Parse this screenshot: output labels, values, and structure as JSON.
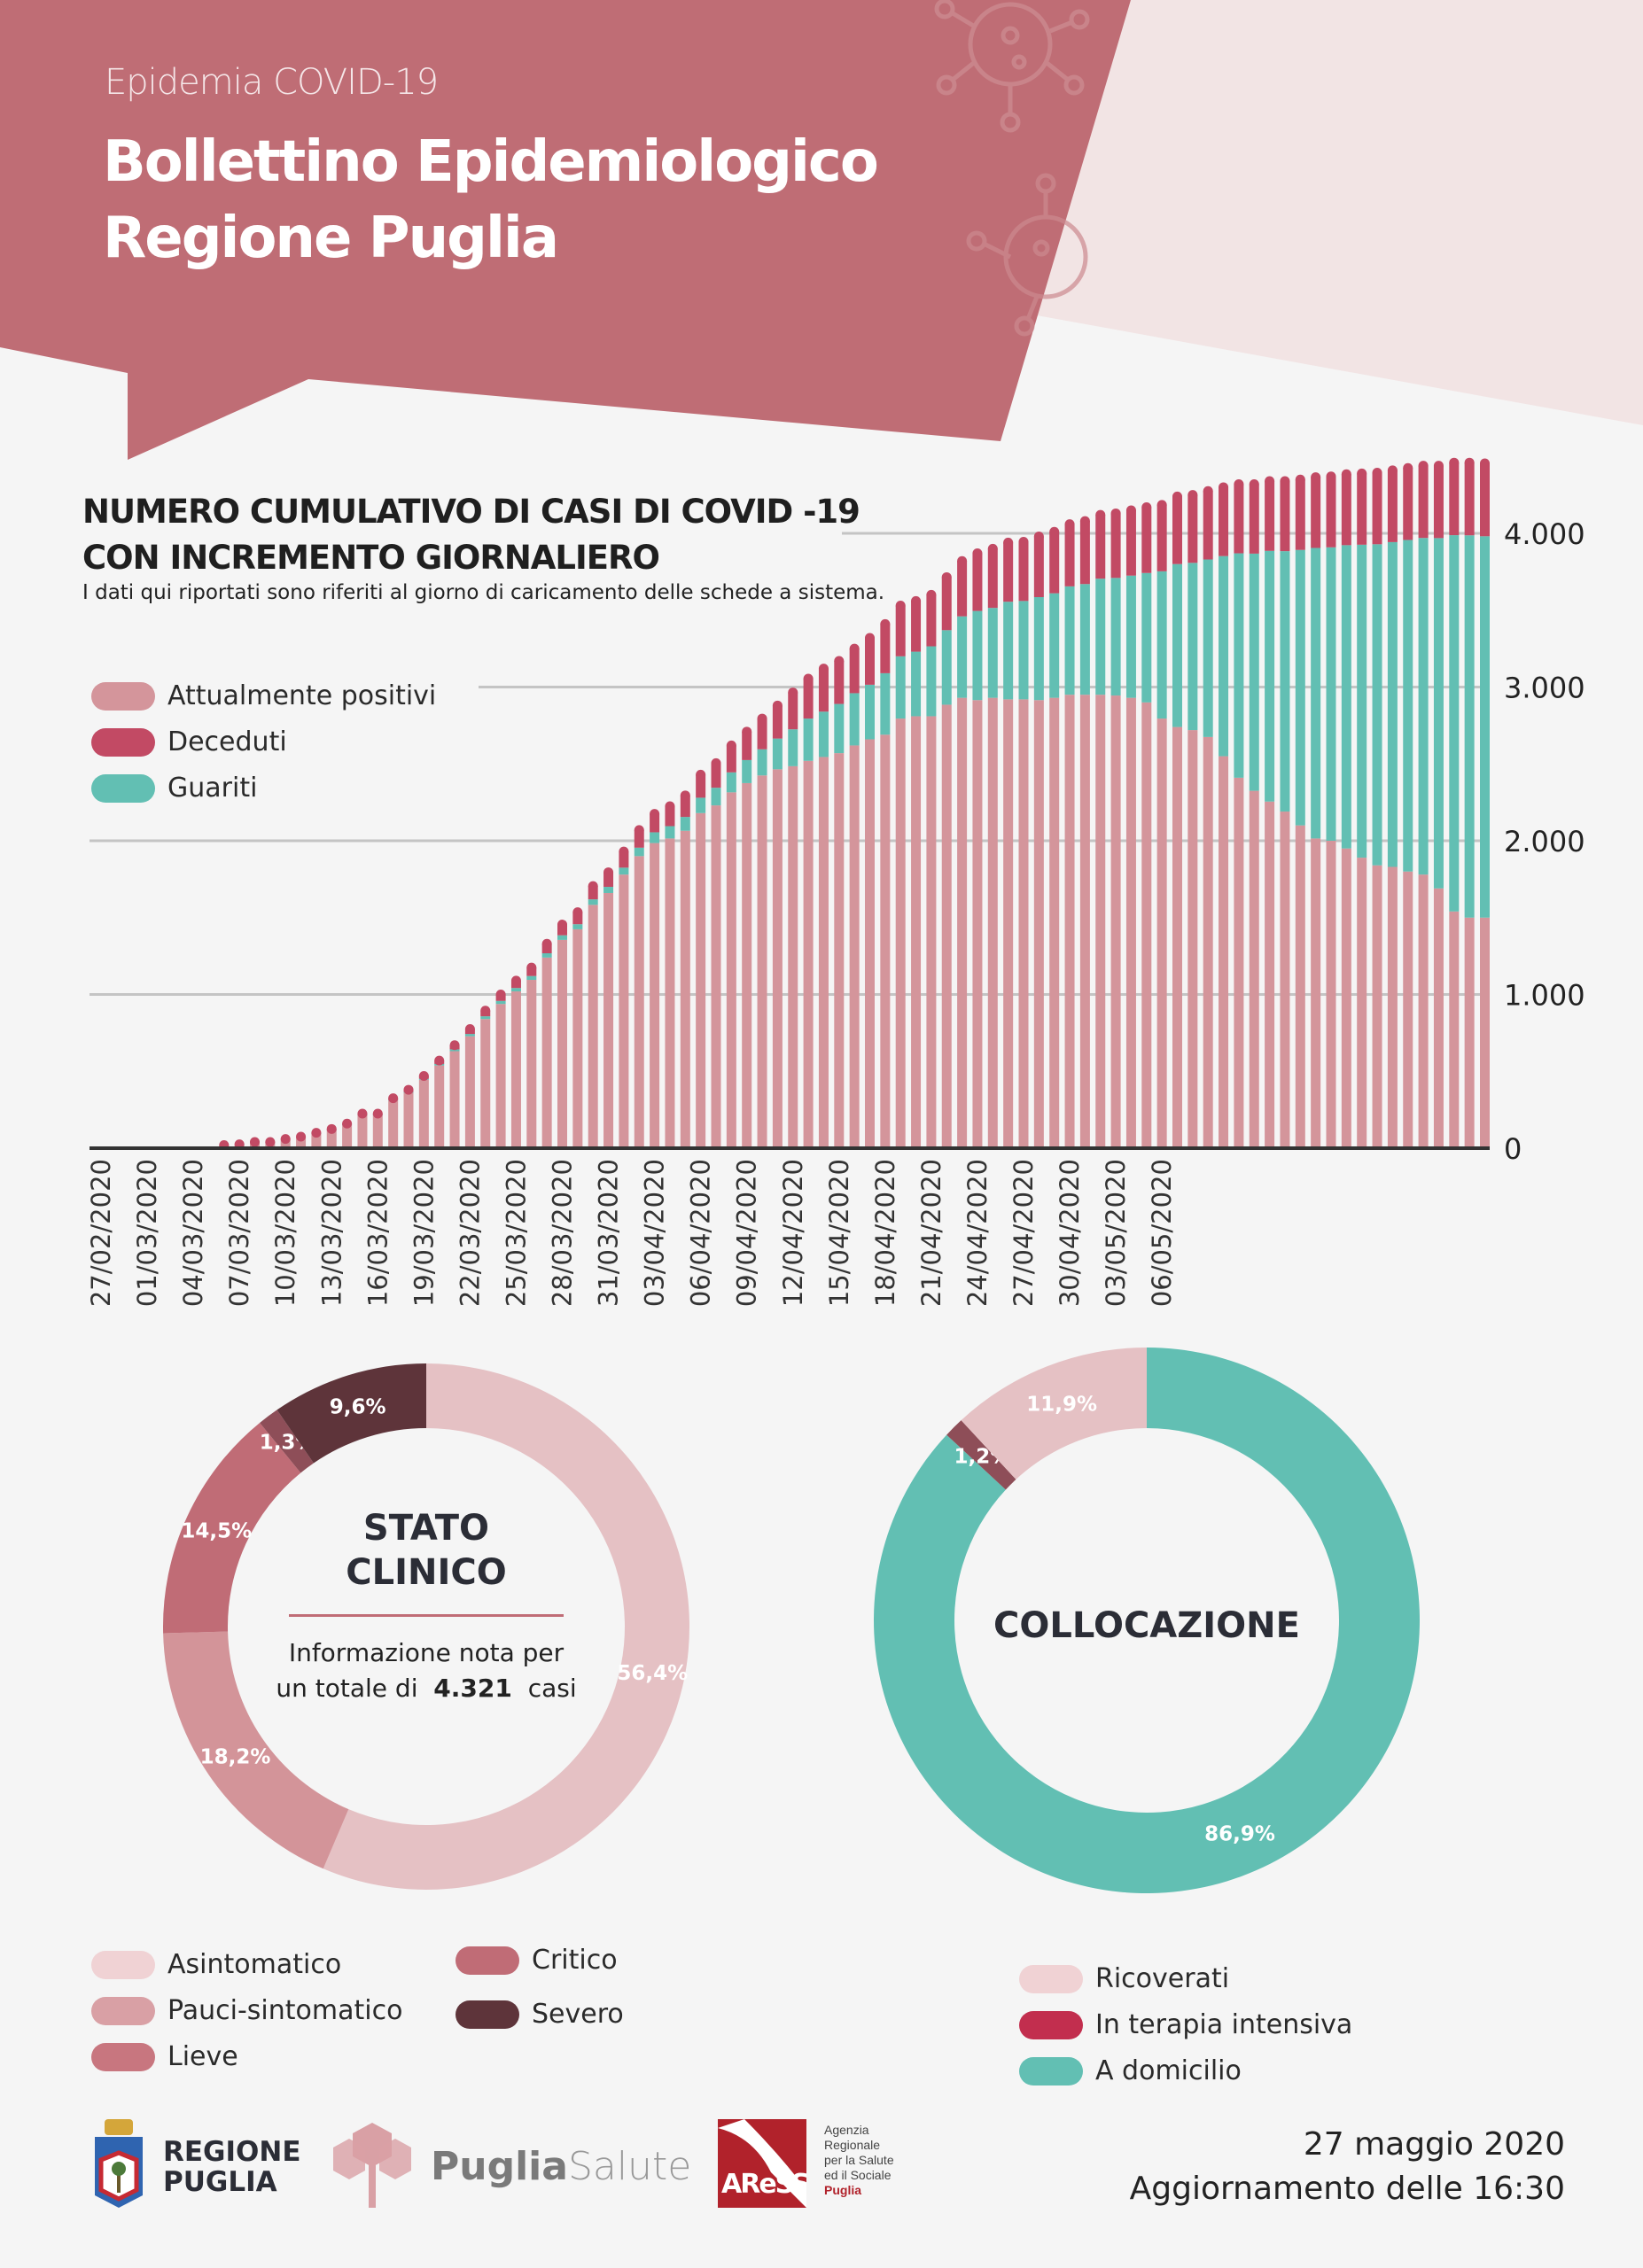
{
  "header": {
    "kicker": "Epidemia COVID-19",
    "title_line1": "Bollettino Epidemiologico",
    "title_line2": "Regione Puglia"
  },
  "colors": {
    "header_bg": "#bf6d75",
    "header_accent_bg": "#f2e4e4",
    "page_bg": "#f5f5f5",
    "attualmente_positivi": "#d4959b",
    "deceduti": "#c24a64",
    "guariti": "#62bfb3"
  },
  "chart_data": [
    {
      "type": "bar",
      "stacked": true,
      "title": "NUMERO CUMULATIVO DI CASI DI COVID -19 CON INCREMENTO GIORNALIERO",
      "title_line1": "NUMERO CUMULATIVO DI CASI DI COVID -19",
      "title_line2": "CON INCREMENTO GIORNALIERO",
      "subtitle": "I dati qui riportati sono riferiti al giorno di caricamento delle schede a sistema.",
      "legend_position": "top-left",
      "grid": true,
      "ylim": [
        0,
        4500
      ],
      "y_ticks": [
        0,
        1000,
        2000,
        3000,
        4000
      ],
      "y_tick_labels": [
        "0",
        "1.000",
        "2.000",
        "3.000",
        "4.000"
      ],
      "x_tick_labels": [
        "27/02/2020",
        "01/03/2020",
        "04/03/2020",
        "07/03/2020",
        "10/03/2020",
        "13/03/2020",
        "16/03/2020",
        "19/03/2020",
        "22/03/2020",
        "25/03/2020",
        "28/03/2020",
        "31/03/2020",
        "03/04/2020",
        "06/04/2020",
        "09/04/2020",
        "12/04/2020",
        "15/04/2020",
        "18/04/2020",
        "21/04/2020",
        "24/04/2020",
        "27/04/2020",
        "30/04/2020",
        "03/05/2020",
        "06/05/2020"
      ],
      "series": [
        {
          "name": "Attualmente positivi",
          "color": "#d4959b",
          "values": [
            0,
            0,
            0,
            0,
            0,
            0,
            0,
            0,
            19,
            24,
            38,
            38,
            57,
            71,
            94,
            118,
            151,
            213,
            213,
            309,
            360,
            445,
            538,
            631,
            728,
            840,
            938,
            1020,
            1095,
            1240,
            1355,
            1424,
            1583,
            1660,
            1780,
            1900,
            1985,
            2015,
            2065,
            2180,
            2230,
            2315,
            2375,
            2425,
            2465,
            2485,
            2520,
            2545,
            2570,
            2620,
            2660,
            2690,
            2795,
            2810,
            2810,
            2885,
            2930,
            2915,
            2930,
            2920,
            2920,
            2915,
            2930,
            2950,
            2950,
            2950,
            2945,
            2930,
            2900,
            2795,
            2740,
            2720,
            2675,
            2550,
            2410,
            2325,
            2255,
            2190,
            2100,
            2015,
            2000,
            1950,
            1890,
            1840,
            1830,
            1800,
            1780,
            1690,
            1540,
            1500,
            1500
          ]
        },
        {
          "name": "Guariti",
          "color": "#62bfb3",
          "values": [
            0,
            0,
            0,
            0,
            0,
            0,
            0,
            0,
            0,
            0,
            0,
            0,
            0,
            0,
            1,
            1,
            1,
            2,
            2,
            3,
            5,
            7,
            10,
            12,
            15,
            18,
            20,
            22,
            25,
            28,
            30,
            33,
            36,
            40,
            45,
            55,
            70,
            80,
            90,
            100,
            115,
            130,
            150,
            170,
            200,
            240,
            275,
            295,
            320,
            340,
            355,
            400,
            405,
            420,
            455,
            485,
            530,
            580,
            585,
            635,
            640,
            670,
            680,
            705,
            720,
            755,
            765,
            795,
            842,
            958,
            1060,
            1088,
            1155,
            1302,
            1460,
            1543,
            1631,
            1694,
            1792,
            1890,
            1909,
            1973,
            2036,
            2089,
            2113,
            2157,
            2190,
            2279,
            2448,
            2487,
            2481
          ]
        },
        {
          "name": "Deceduti",
          "color": "#c24a64",
          "values": [
            0,
            0,
            0,
            0,
            0,
            0,
            0,
            0,
            1,
            1,
            2,
            2,
            3,
            4,
            5,
            6,
            8,
            10,
            10,
            13,
            15,
            18,
            22,
            27,
            32,
            37,
            42,
            48,
            55,
            62,
            70,
            78,
            86,
            95,
            105,
            115,
            120,
            130,
            140,
            150,
            160,
            175,
            185,
            200,
            215,
            240,
            260,
            280,
            280,
            290,
            305,
            320,
            330,
            330,
            335,
            345,
            360,
            375,
            385,
            385,
            385,
            395,
            400,
            405,
            410,
            415,
            420,
            425,
            428,
            432,
            440,
            442,
            445,
            448,
            450,
            452,
            454,
            456,
            458,
            460,
            461,
            462,
            464,
            466,
            467,
            468,
            470,
            471,
            472,
            473,
            474
          ]
        }
      ]
    },
    {
      "type": "pie",
      "donut": true,
      "title_line1": "STATO",
      "title_line2": "CLINICO",
      "info_line1": "Informazione nota per",
      "info_line2_prefix": "un totale di",
      "info_total": "4.321",
      "info_line2_suffix": "casi",
      "slices": [
        {
          "name": "Asintomatico",
          "value": 56.4,
          "label": "56,4%",
          "color": "#e5c1c4"
        },
        {
          "name": "Pauci-sintomatico",
          "value": 18.2,
          "label": "18,2%",
          "color": "#d39499"
        },
        {
          "name": "Lieve",
          "value": 14.5,
          "label": "14,5%",
          "color": "#c06c76"
        },
        {
          "name": "Critico",
          "value": 1.3,
          "label": "1,3%",
          "color": "#8e4e58"
        },
        {
          "name": "Severo",
          "value": 9.6,
          "label": "9,6%",
          "color": "#5e343a"
        }
      ],
      "legend": [
        {
          "name": "Asintomatico",
          "color": "#f0d2d4"
        },
        {
          "name": "Pauci-sintomatico",
          "color": "#d9a0a5"
        },
        {
          "name": "Lieve",
          "color": "#c8767f"
        },
        {
          "name": "Critico",
          "color": "#c06c76"
        },
        {
          "name": "Severo",
          "color": "#5e343a"
        }
      ]
    },
    {
      "type": "pie",
      "donut": true,
      "title": "COLLOCAZIONE",
      "slices": [
        {
          "name": "A domicilio",
          "value": 86.9,
          "label": "86,9%",
          "color": "#62bfb3"
        },
        {
          "name": "In terapia intensiva",
          "value": 1.2,
          "label": "1,2%",
          "color": "#8e4e58"
        },
        {
          "name": "Ricoverati",
          "value": 11.9,
          "label": "11,9%",
          "color": "#e5c1c4"
        }
      ],
      "legend": [
        {
          "name": "Ricoverati",
          "color": "#f0d2d4"
        },
        {
          "name": "In terapia intensiva",
          "color": "#c22e4e"
        },
        {
          "name": "A domicilio",
          "color": "#62bfb3"
        }
      ]
    }
  ],
  "footer": {
    "logo_regione": "REGIONE PUGLIA",
    "logo_regione_line1": "REGIONE",
    "logo_regione_line2": "PUGLIA",
    "logo_pugliasalute_bold": "Puglia",
    "logo_pugliasalute_light": "Salute",
    "logo_aress_mark": "AReSS",
    "logo_aress_text": [
      "Agenzia",
      "Regionale",
      "per la Salute",
      "ed il Sociale",
      "Puglia"
    ],
    "date": "27 maggio 2020",
    "update": "Aggiornamento delle 16:30"
  }
}
